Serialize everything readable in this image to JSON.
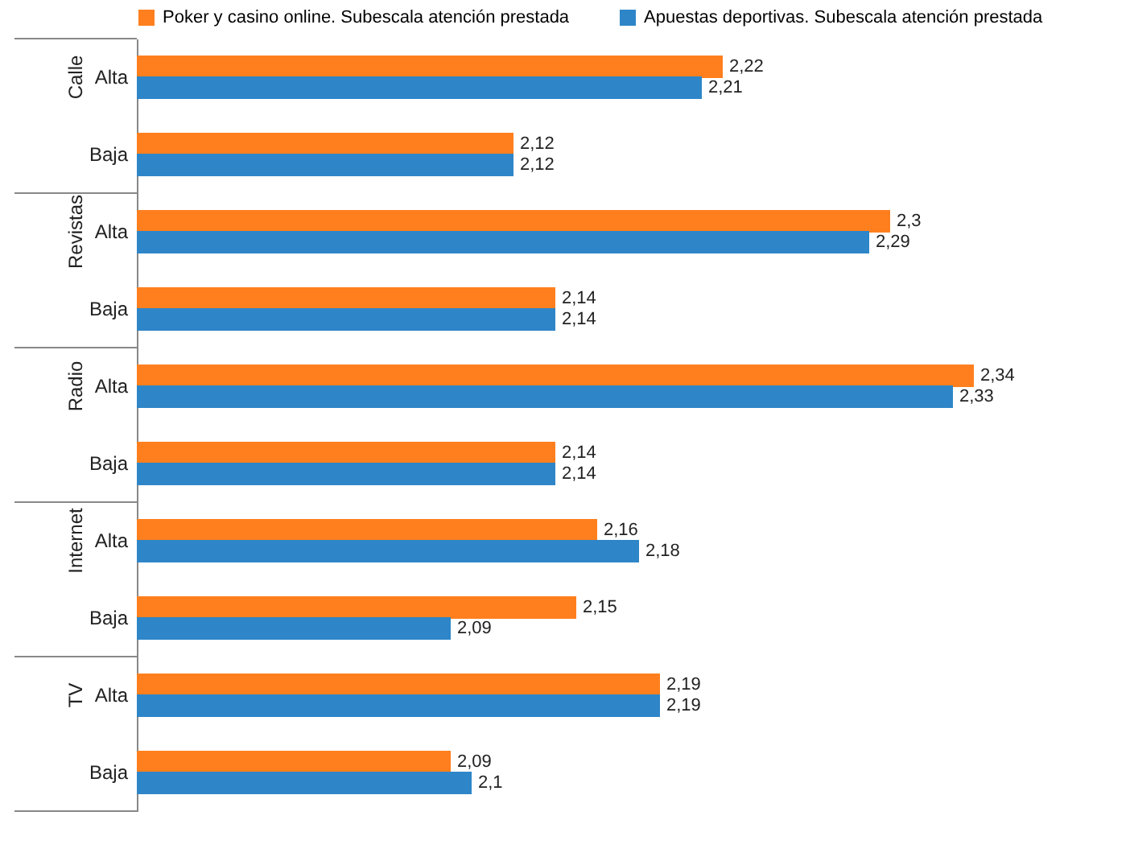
{
  "chart_data": {
    "type": "bar",
    "orientation": "horizontal",
    "categories": [
      "Alta",
      "Baja",
      "Alta",
      "Baja",
      "Alta",
      "Baja",
      "Alta",
      "Baja",
      "Alta",
      "Baja"
    ],
    "annotations": [
      "Calle",
      "Revistas",
      "Radio",
      "Internet",
      "TV"
    ],
    "series": [
      {
        "name": "Poker y casino online. Subescala atención prestada",
        "color": "#ff7f1e",
        "values": [
          2.22,
          2.12,
          2.3,
          2.14,
          2.34,
          2.14,
          2.16,
          2.15,
          2.19,
          2.09
        ],
        "value_labels": [
          "2,22",
          "2,12",
          "2,3",
          "2,14",
          "2,34",
          "2,14",
          "2,16",
          "2,15",
          "2,19",
          "2,09"
        ]
      },
      {
        "name": "Apuestas deportivas. Subescala atención prestada",
        "color": "#2e86c8",
        "values": [
          2.21,
          2.12,
          2.29,
          2.14,
          2.33,
          2.14,
          2.18,
          2.09,
          2.19,
          2.1
        ],
        "value_labels": [
          "2,21",
          "2,12",
          "2,29",
          "2,14",
          "2,33",
          "2,14",
          "2,18",
          "2,09",
          "2,19",
          "2,1"
        ]
      }
    ],
    "xlim": [
      1.94,
      2.34
    ],
    "legend": "top",
    "tick_labels": "y"
  }
}
